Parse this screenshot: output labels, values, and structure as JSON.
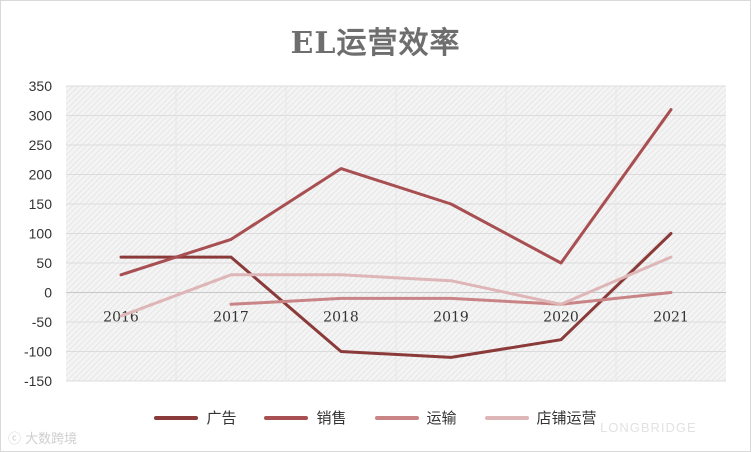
{
  "chart_data": {
    "type": "line",
    "title": "EL运营效率",
    "categories": [
      "2016",
      "2017",
      "2018",
      "2019",
      "2020",
      "2021"
    ],
    "ylim": [
      -150,
      350
    ],
    "yticks": [
      -150,
      -100,
      -50,
      0,
      50,
      100,
      150,
      200,
      250,
      300,
      350
    ],
    "grid": true,
    "legend_position": "bottom",
    "series": [
      {
        "name": "广告",
        "color": "#8b3a3a",
        "values": [
          60,
          60,
          -100,
          -110,
          -80,
          100
        ]
      },
      {
        "name": "销售",
        "color": "#a84f52",
        "values": [
          30,
          90,
          210,
          150,
          50,
          310
        ]
      },
      {
        "name": "运输",
        "color": "#c98486",
        "values": [
          null,
          -20,
          -10,
          -10,
          -20,
          0
        ]
      },
      {
        "name": "店铺运营",
        "color": "#dfb6b7",
        "values": [
          -40,
          30,
          30,
          20,
          -20,
          60
        ]
      }
    ]
  },
  "watermarks": {
    "left": "大数跨境",
    "right": "LONGBRIDGE"
  }
}
